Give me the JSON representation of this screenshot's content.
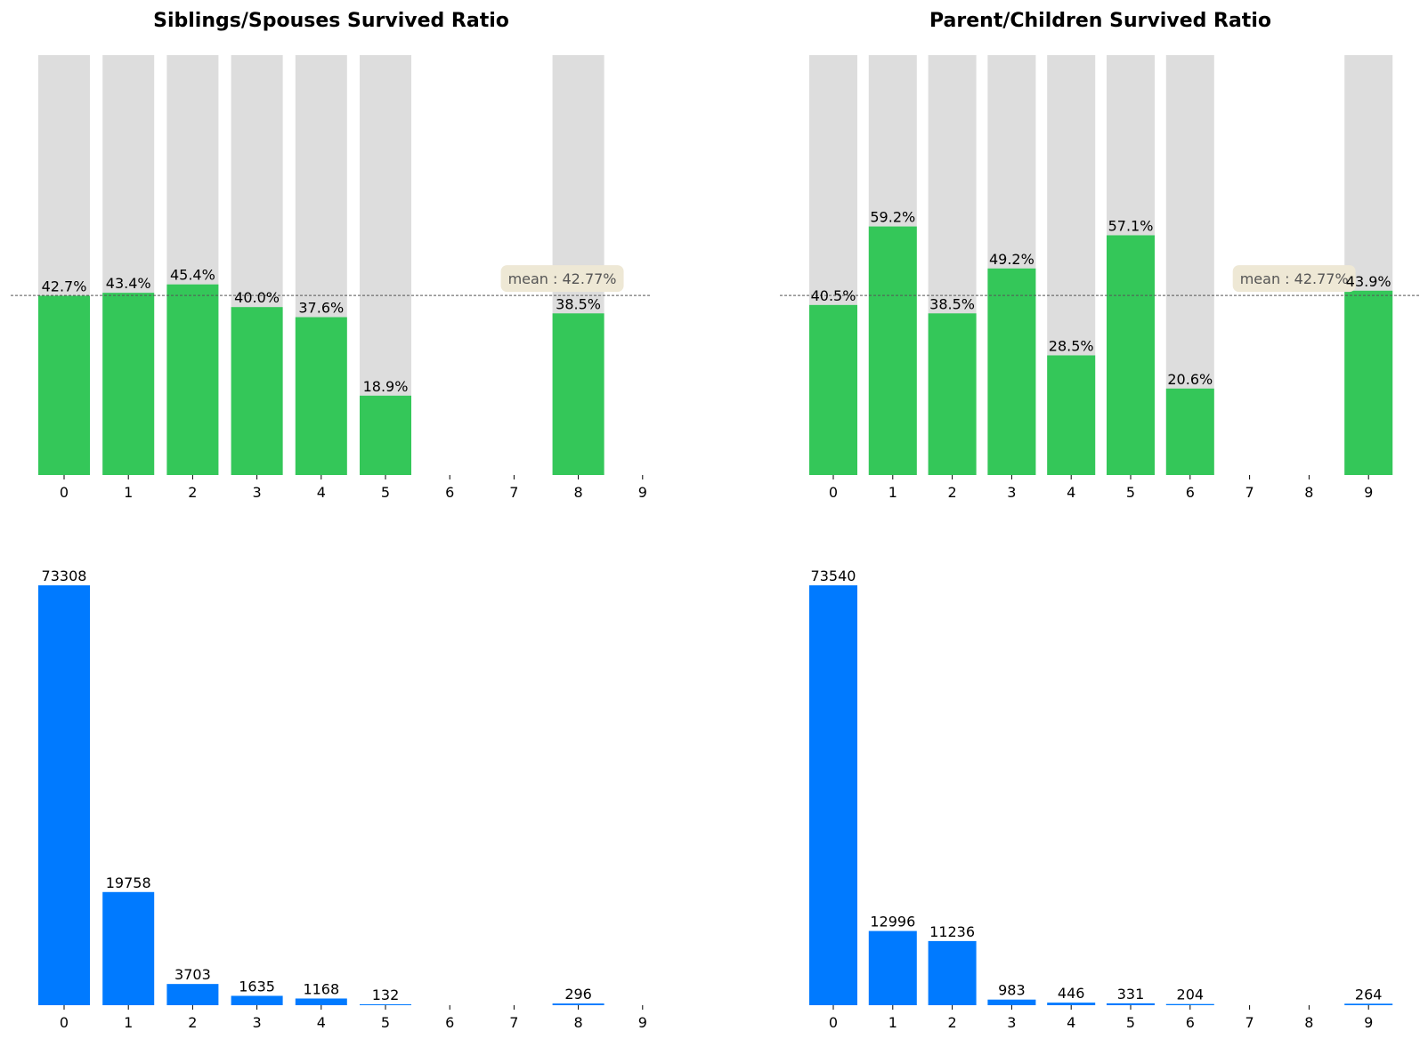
{
  "colors": {
    "survived": "#34c759",
    "background_bar": "#dddddd",
    "count": "#007aff",
    "mean_box": "#eee8d5"
  },
  "chart_data": [
    {
      "panel": "top-left",
      "type": "bar",
      "title": "Siblings/Spouses Survived Ratio",
      "categories": [
        "0",
        "1",
        "2",
        "3",
        "4",
        "5",
        "6",
        "7",
        "8",
        "9"
      ],
      "values": [
        0.427,
        0.434,
        0.454,
        0.4,
        0.376,
        0.189,
        null,
        null,
        0.385,
        null
      ],
      "data_labels": [
        "42.7%",
        "43.4%",
        "45.4%",
        "40.0%",
        "37.6%",
        "18.9%",
        "",
        "",
        "38.5%",
        ""
      ],
      "background_values": [
        1,
        1,
        1,
        1,
        1,
        1,
        null,
        null,
        1,
        null
      ],
      "ylim": [
        0,
        1
      ],
      "mean_line": 0.4277,
      "mean_label": "mean : 42.77%",
      "grid": false
    },
    {
      "panel": "top-right",
      "type": "bar",
      "title": "Parent/Children Survived Ratio",
      "categories": [
        "0",
        "1",
        "2",
        "3",
        "4",
        "5",
        "6",
        "7",
        "8",
        "9"
      ],
      "values": [
        0.405,
        0.592,
        0.385,
        0.492,
        0.285,
        0.571,
        0.206,
        null,
        null,
        0.439
      ],
      "data_labels": [
        "40.5%",
        "59.2%",
        "38.5%",
        "49.2%",
        "28.5%",
        "57.1%",
        "20.6%",
        "",
        "",
        "43.9%"
      ],
      "background_values": [
        1,
        1,
        1,
        1,
        1,
        1,
        1,
        null,
        null,
        1
      ],
      "ylim": [
        0,
        1
      ],
      "mean_line": 0.4277,
      "mean_label": "mean : 42.77%",
      "grid": false
    },
    {
      "panel": "bottom-left",
      "type": "bar",
      "title": "",
      "categories": [
        "0",
        "1",
        "2",
        "3",
        "4",
        "5",
        "6",
        "7",
        "8",
        "9"
      ],
      "values": [
        73308,
        19758,
        3703,
        1635,
        1168,
        132,
        null,
        null,
        296,
        null
      ],
      "data_labels": [
        "73308",
        "19758",
        "3703",
        "1635",
        "1168",
        "132",
        "",
        "",
        "296",
        ""
      ],
      "ylim": [
        0,
        73308
      ],
      "grid": false
    },
    {
      "panel": "bottom-right",
      "type": "bar",
      "title": "",
      "categories": [
        "0",
        "1",
        "2",
        "3",
        "4",
        "5",
        "6",
        "7",
        "8",
        "9"
      ],
      "values": [
        73540,
        12996,
        11236,
        983,
        446,
        331,
        204,
        null,
        null,
        264
      ],
      "data_labels": [
        "73540",
        "12996",
        "11236",
        "983",
        "446",
        "331",
        "204",
        "",
        "",
        "264"
      ],
      "ylim": [
        0,
        73540
      ],
      "grid": false
    }
  ]
}
